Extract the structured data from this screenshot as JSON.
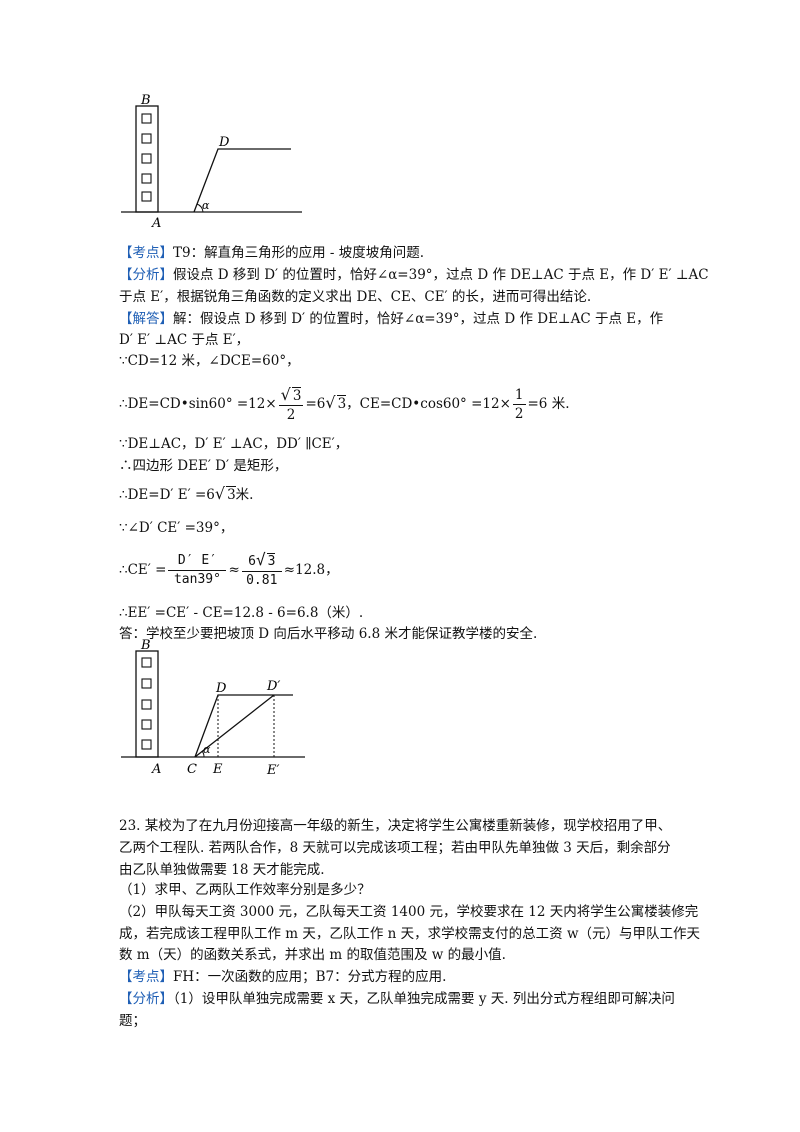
{
  "figure1": {
    "labels": {
      "B": "B",
      "A": "A",
      "D": "D",
      "alpha": "α"
    }
  },
  "section22": {
    "kaodian_tag": "【考点】",
    "kaodian_text": "T9：解直角三角形的应用 - 坡度坡角问题.",
    "fenxi_tag": "【分析】",
    "fenxi_line1": "假设点 D 移到 D′ 的位置时，恰好∠α=39°，过点 D 作 DE⊥AC 于点 E，作 D′ E′ ⊥AC",
    "fenxi_line2": "于点 E′，根据锐角三角函数的定义求出 DE、CE、CE′ 的长，进而可得出结论.",
    "jieda_tag": "【解答】",
    "jieda_line1": "解：假设点 D 移到 D′ 的位置时，恰好∠α=39°，过点 D 作 DE⊥AC 于点 E，作",
    "jieda_line2": "D′ E′ ⊥AC 于点 E′，",
    "step1": "∵CD=12 米，∠DCE=60°，",
    "step2_a": "∴DE=CD•sin60° =12×",
    "step2_frac_num": "3",
    "step2_frac_den": "2",
    "step2_b": "=6",
    "step2_sqrt": "3",
    "step2_c": "，CE=CD•cos60° =12×",
    "step2_frac2_num": "1",
    "step2_frac2_den": "2",
    "step2_d": "=6 米.",
    "step3": "∵DE⊥AC，D′ E′ ⊥AC，DD′ ∥CE′，",
    "step4": "∴四边形 DEE′ D′ 是矩形，",
    "step5_a": "∴DE=D′ E′ =6",
    "step5_sqrt": "3",
    "step5_b": "米.",
    "step6": "∵∠D′ CE′ =39°，",
    "step7_a": "∴CE′ =",
    "step7_num1": "D′ E′",
    "step7_den1": "tan39°",
    "step7_approx1": "≈",
    "step7_num2_a": "6",
    "step7_num2_sqrt": "3",
    "step7_den2": "0.81",
    "step7_b": "≈12.8，",
    "step8": "∴EE′ =CE′ - CE=12.8 - 6=6.8（米）.",
    "answer": "答：学校至少要把坡顶 D 向后水平移动 6.8 米才能保证教学楼的安全."
  },
  "figure2": {
    "labels": {
      "B": "B",
      "A": "A",
      "D": "D",
      "D2": "D′",
      "C": "C",
      "E": "E",
      "E2": "E′",
      "alpha": "α"
    }
  },
  "section23": {
    "q_line1": "23. 某校为了在九月份迎接高一年级的新生，决定将学生公寓楼重新装修，现学校招用了甲、",
    "q_line2": "乙两个工程队. 若两队合作，8 天就可以完成该项工程；若由甲队先单独做 3 天后，剩余部分",
    "q_line3": "由乙队单独做需要 18 天才能完成.",
    "q_part1": "（1）求甲、乙两队工作效率分别是多少？",
    "q_part2_line1": "（2）甲队每天工资 3000 元，乙队每天工资 1400 元，学校要求在 12 天内将学生公寓楼装修完",
    "q_part2_line2": "成，若完成该工程甲队工作 m 天，乙队工作 n 天，求学校需支付的总工资 w（元）与甲队工作天",
    "q_part2_line3": "数 m（天）的函数关系式，并求出 m 的取值范围及 w 的最小值.",
    "kaodian_tag": "【考点】",
    "kaodian_text": "FH：一次函数的应用；B7：分式方程的应用.",
    "fenxi_tag": "【分析】",
    "fenxi_line1": "（1）设甲队单独完成需要 x 天，乙队单独完成需要 y 天. 列出分式方程组即可解决问",
    "fenxi_line2": "题；"
  }
}
